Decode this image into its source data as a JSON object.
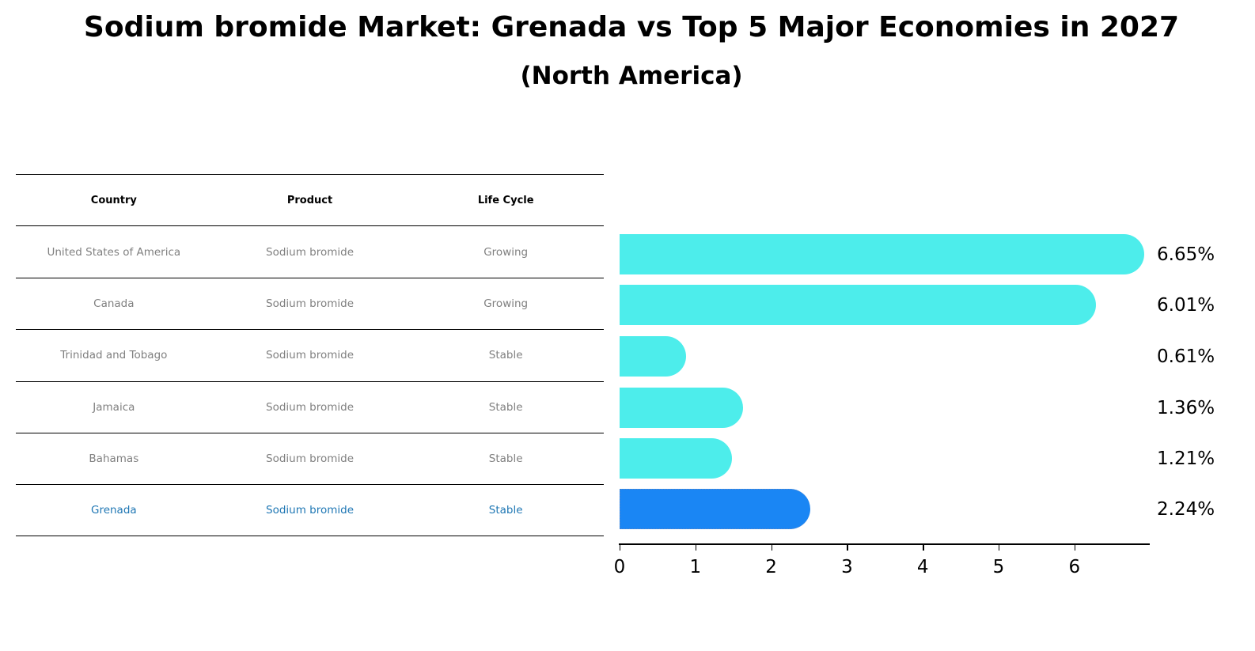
{
  "header": {
    "title": "Sodium bromide Market: Grenada vs Top 5 Major Economies in 2027",
    "subtitle": "(North America)"
  },
  "table": {
    "columns": [
      "Country",
      "Product",
      "Life Cycle"
    ],
    "rows": [
      {
        "country": "United States of America",
        "product": "Sodium bromide",
        "life_cycle": "Growing"
      },
      {
        "country": "Canada",
        "product": "Sodium bromide",
        "life_cycle": "Growing"
      },
      {
        "country": "Trinidad and Tobago",
        "product": "Sodium bromide",
        "life_cycle": "Stable"
      },
      {
        "country": "Jamaica",
        "product": "Sodium bromide",
        "life_cycle": "Stable"
      },
      {
        "country": "Bahamas",
        "product": "Sodium bromide",
        "life_cycle": "Stable"
      },
      {
        "country": "Grenada",
        "product": "Sodium bromide",
        "life_cycle": "Stable"
      }
    ],
    "highlight_row": 5,
    "highlight_color": "#1f77b4",
    "text_color": "#808080"
  },
  "colors": {
    "bar": "#4dedeb",
    "highlight_bar": "#1a86f4"
  },
  "chart_data": {
    "type": "bar",
    "orientation": "horizontal",
    "title": "Sodium bromide Market: Grenada vs Top 5 Major Economies in 2027",
    "subtitle": "(North America)",
    "categories": [
      "United States of America",
      "Canada",
      "Trinidad and Tobago",
      "Jamaica",
      "Bahamas",
      "Grenada"
    ],
    "values": [
      6.65,
      6.01,
      0.61,
      1.36,
      1.21,
      2.24
    ],
    "value_labels": [
      "6.65%",
      "6.01%",
      "0.61%",
      "1.36%",
      "1.21%",
      "2.24%"
    ],
    "highlight": "Grenada",
    "xlabel": "",
    "ylabel": "",
    "xticks": [
      "0",
      "1",
      "2",
      "3",
      "4",
      "5",
      "6"
    ],
    "xlim": [
      0,
      7
    ],
    "grid": false,
    "legend": null
  }
}
